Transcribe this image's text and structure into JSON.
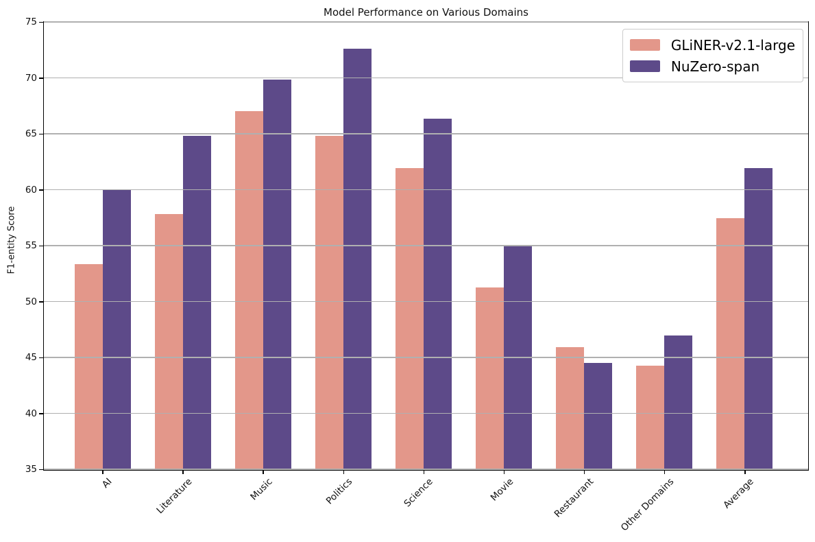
{
  "figure": {
    "title": "Model Performance on Various Domains",
    "ylabel": "F1-entity Score"
  },
  "chart_data": {
    "type": "bar",
    "title": "Model Performance on Various Domains",
    "xlabel": "",
    "ylabel": "F1-entity Score",
    "ylim": [
      35,
      75
    ],
    "yticks": [
      35,
      40,
      45,
      50,
      55,
      60,
      65,
      70,
      75
    ],
    "grid": true,
    "gridcolor": "#b0b0b0",
    "legend_position": "upper right",
    "categories": [
      "AI",
      "Literature",
      "Music",
      "Politics",
      "Science",
      "Movie",
      "Restaurant",
      "Other Domains",
      "Average"
    ],
    "series": [
      {
        "name": "GLiNER-v2.1-large",
        "color": "#e3978a",
        "values": [
          53.4,
          57.9,
          67.1,
          64.9,
          62.0,
          51.3,
          46.0,
          44.3,
          57.5
        ]
      },
      {
        "name": "NuZero-span",
        "color": "#5d4a89",
        "values": [
          60.1,
          64.9,
          69.9,
          72.7,
          66.4,
          55.1,
          44.6,
          47.0,
          62.0
        ]
      }
    ]
  }
}
